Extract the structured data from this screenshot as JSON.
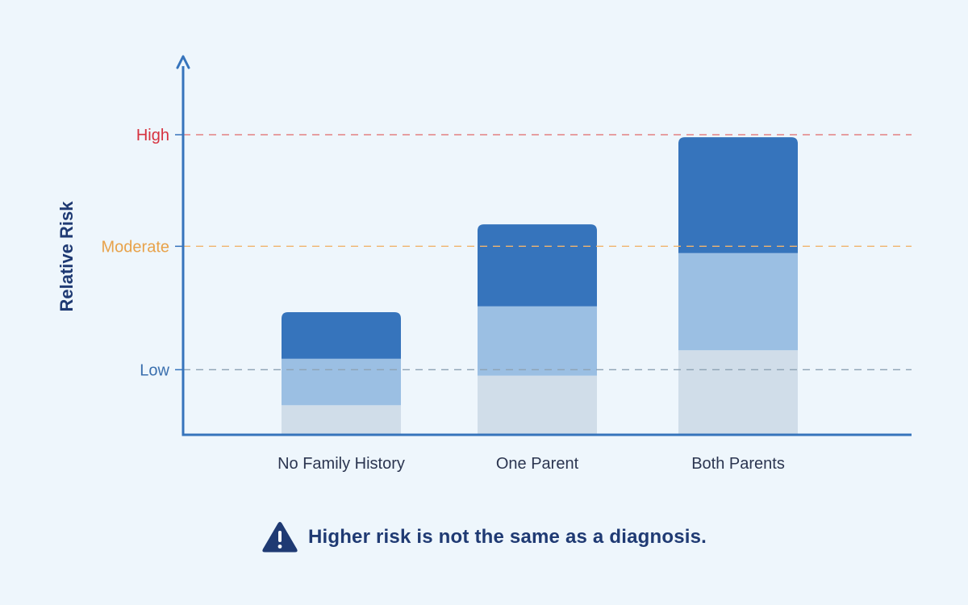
{
  "chart_data": {
    "type": "bar",
    "stacked": true,
    "ylabel": "Relative Risk",
    "xlabel": "",
    "categories": [
      "No Family History",
      "One Parent",
      "Both Parents"
    ],
    "series": [
      {
        "values": [
          0.35,
          0.7,
          1.0
        ],
        "color": "#d0dde9"
      },
      {
        "values": [
          0.55,
          0.82,
          1.15
        ],
        "color": "#9bbfe3"
      },
      {
        "values": [
          0.55,
          0.97,
          1.37
        ],
        "color": "#3674bc"
      }
    ],
    "ylim": [
      0,
      3.55
    ],
    "reference_lines": [
      {
        "label": "Low",
        "value": 0.77,
        "color": "#3a6fae",
        "line_color": "#8ea3b4"
      },
      {
        "label": "Moderate",
        "value": 2.23,
        "color": "#e8a24a",
        "line_color": "#f0b46e"
      },
      {
        "label": "High",
        "value": 3.55,
        "color": "#d6323f",
        "line_color": "#e26a6a"
      }
    ],
    "axis_color": "#3674bc",
    "grid": false
  },
  "note": {
    "icon": "warning-icon",
    "text": "Higher risk is not the same as a diagnosis.",
    "color": "#1f3a73"
  }
}
